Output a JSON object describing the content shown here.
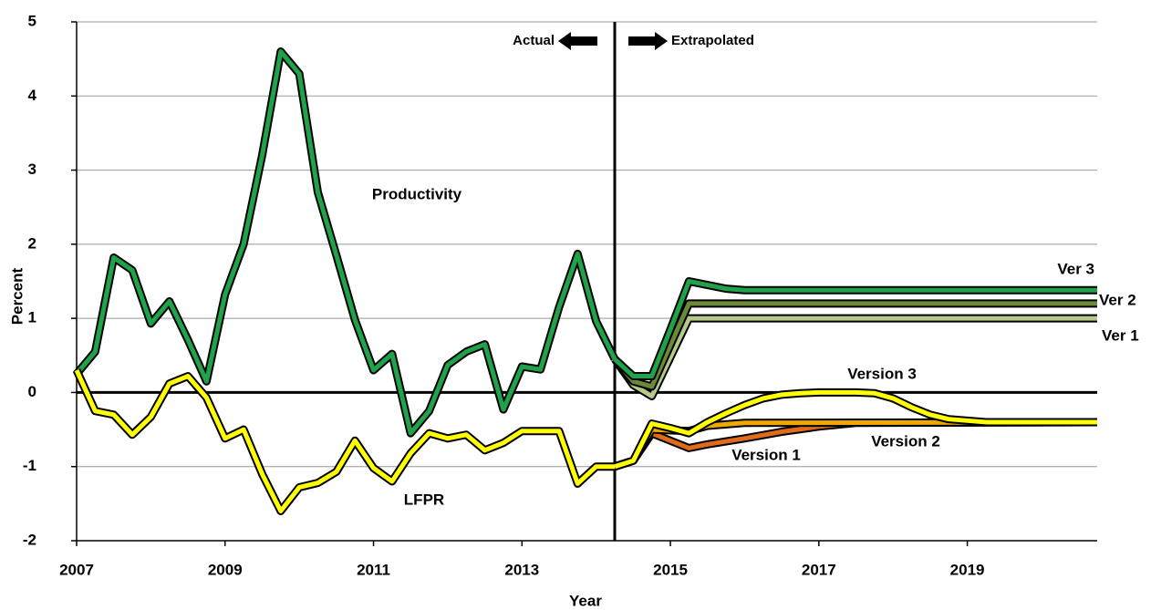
{
  "chart_data": {
    "type": "line",
    "x_label": "Year",
    "y_label": "Percent",
    "xlim": [
      2007,
      2020.75
    ],
    "xticks": [
      2007,
      2009,
      2011,
      2013,
      2015,
      2017,
      2019
    ],
    "ylim": [
      -2,
      5
    ],
    "yticks": [
      -2,
      -1,
      0,
      1,
      2,
      3,
      4,
      5
    ],
    "grid": true,
    "divider_x": 2014.25,
    "annotations": [
      "Actual",
      "Extrapolated"
    ],
    "series": [
      {
        "name": "Ver 1",
        "color": "#b5c98b",
        "x": [
          2014.25,
          2014.5,
          2014.75,
          2015.25,
          2020.75
        ],
        "values": [
          0.45,
          0.1,
          -0.05,
          1.0,
          1.0
        ]
      },
      {
        "name": "Ver 2",
        "color": "#6b8a38",
        "x": [
          2014.25,
          2014.5,
          2014.75,
          2015.25,
          2020.75
        ],
        "values": [
          0.45,
          0.15,
          0.08,
          1.2,
          1.2
        ]
      },
      {
        "name": "Ver 3",
        "color": "#1fa24a",
        "x": [
          2014.25,
          2014.5,
          2014.75,
          2015,
          2015.25,
          2015.5,
          2015.75,
          2016,
          2020.75
        ],
        "values": [
          0.45,
          0.22,
          0.22,
          0.85,
          1.5,
          1.45,
          1.4,
          1.38,
          1.38
        ]
      },
      {
        "name": "Productivity",
        "color": "#1fa24a",
        "x": [
          2007,
          2007.25,
          2007.5,
          2007.75,
          2008,
          2008.25,
          2008.5,
          2008.75,
          2009,
          2009.25,
          2009.5,
          2009.75,
          2010,
          2010.25,
          2010.5,
          2010.75,
          2011,
          2011.25,
          2011.5,
          2011.75,
          2012,
          2012.25,
          2012.5,
          2012.75,
          2013,
          2013.25,
          2013.5,
          2013.75,
          2014,
          2014.25
        ],
        "values": [
          0.25,
          0.55,
          1.82,
          1.65,
          0.93,
          1.23,
          0.71,
          0.15,
          1.32,
          2.0,
          3.2,
          4.6,
          4.3,
          2.7,
          1.85,
          0.98,
          0.3,
          0.52,
          -0.55,
          -0.25,
          0.37,
          0.55,
          0.65,
          -0.23,
          0.35,
          0.31,
          1.15,
          1.87,
          0.96,
          0.45
        ]
      },
      {
        "name": "Version 1",
        "color": "#e06c1a",
        "x": [
          2014.25,
          2014.5,
          2014.75,
          2015.25,
          2015.5,
          2016,
          2016.5,
          2017,
          2017.5,
          2020.75
        ],
        "values": [
          -1.0,
          -0.92,
          -0.55,
          -0.75,
          -0.7,
          -0.62,
          -0.53,
          -0.46,
          -0.41,
          -0.4
        ]
      },
      {
        "name": "Version 2",
        "color": "#f0a800",
        "x": [
          2014.25,
          2014.5,
          2014.75,
          2015.25,
          2015.5,
          2016,
          2020.75
        ],
        "values": [
          -1.0,
          -0.92,
          -0.5,
          -0.52,
          -0.45,
          -0.41,
          -0.4
        ]
      },
      {
        "name": "Version 3",
        "color": "#ffff00",
        "x": [
          2014.25,
          2014.5,
          2014.75,
          2015,
          2015.25,
          2015.5,
          2015.75,
          2016,
          2016.25,
          2016.5,
          2016.75,
          2017,
          2017.25,
          2017.5,
          2017.75,
          2018,
          2018.25,
          2018.5,
          2018.75,
          2019,
          2019.25,
          2019.5,
          2020.75
        ],
        "values": [
          -1.0,
          -0.92,
          -0.42,
          -0.48,
          -0.55,
          -0.4,
          -0.28,
          -0.17,
          -0.08,
          -0.03,
          -0.01,
          0,
          0,
          0,
          -0.01,
          -0.08,
          -0.2,
          -0.3,
          -0.36,
          -0.38,
          -0.4,
          -0.4,
          -0.4
        ]
      },
      {
        "name": "LFPR",
        "color": "#ffff00",
        "x": [
          2007,
          2007.25,
          2007.5,
          2007.75,
          2008,
          2008.25,
          2008.5,
          2008.75,
          2009,
          2009.25,
          2009.5,
          2009.75,
          2010,
          2010.25,
          2010.5,
          2010.75,
          2011,
          2011.25,
          2011.5,
          2011.75,
          2012,
          2012.25,
          2012.5,
          2012.75,
          2013,
          2013.25,
          2013.5,
          2013.75,
          2014,
          2014.25
        ],
        "values": [
          0.3,
          -0.25,
          -0.3,
          -0.57,
          -0.33,
          0.12,
          0.22,
          -0.07,
          -0.62,
          -0.5,
          -1.1,
          -1.6,
          -1.28,
          -1.22,
          -1.07,
          -0.65,
          -1.02,
          -1.2,
          -0.82,
          -0.55,
          -0.62,
          -0.57,
          -0.78,
          -0.68,
          -0.52,
          -0.52,
          -0.52,
          -1.23,
          -1.0,
          -1.0
        ]
      }
    ]
  }
}
